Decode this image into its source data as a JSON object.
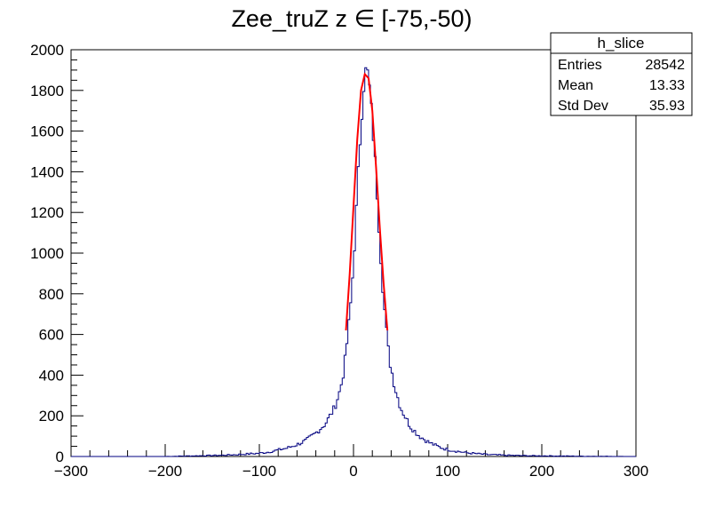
{
  "chart_data": {
    "type": "histogram",
    "title": "Zee_truZ z  ∈ [-75,-50)",
    "xlabel": "",
    "ylabel": "",
    "xlim": [
      -300,
      300
    ],
    "ylim": [
      0,
      2000
    ],
    "x_ticks": [
      -300,
      -200,
      -100,
      0,
      100,
      200,
      300
    ],
    "y_ticks": [
      0,
      200,
      400,
      600,
      800,
      1000,
      1200,
      1400,
      1600,
      1800,
      2000
    ],
    "grid": false,
    "colors": {
      "histogram": "#000080",
      "fit": "#ff0000"
    },
    "series": [
      {
        "kind": "histogram",
        "bin_width": 2,
        "bins": [
          {
            "x": -300,
            "y": 0
          },
          {
            "x": -200,
            "y": 0
          },
          {
            "x": -180,
            "y": 2
          },
          {
            "x": -160,
            "y": 4
          },
          {
            "x": -140,
            "y": 6
          },
          {
            "x": -120,
            "y": 10
          },
          {
            "x": -100,
            "y": 16
          },
          {
            "x": -90,
            "y": 22
          },
          {
            "x": -80,
            "y": 32
          },
          {
            "x": -70,
            "y": 42
          },
          {
            "x": -60,
            "y": 58
          },
          {
            "x": -50,
            "y": 80
          },
          {
            "x": -40,
            "y": 115
          },
          {
            "x": -30,
            "y": 160
          },
          {
            "x": -20,
            "y": 240
          },
          {
            "x": -14,
            "y": 330
          },
          {
            "x": -10,
            "y": 430
          },
          {
            "x": -6,
            "y": 600
          },
          {
            "x": -2,
            "y": 800
          },
          {
            "x": 2,
            "y": 1120
          },
          {
            "x": 6,
            "y": 1480
          },
          {
            "x": 10,
            "y": 1780
          },
          {
            "x": 12,
            "y": 1880
          },
          {
            "x": 14,
            "y": 1900
          },
          {
            "x": 16,
            "y": 1860
          },
          {
            "x": 18,
            "y": 1760
          },
          {
            "x": 22,
            "y": 1520
          },
          {
            "x": 26,
            "y": 1220
          },
          {
            "x": 30,
            "y": 900
          },
          {
            "x": 34,
            "y": 660
          },
          {
            "x": 38,
            "y": 480
          },
          {
            "x": 44,
            "y": 340
          },
          {
            "x": 50,
            "y": 240
          },
          {
            "x": 60,
            "y": 150
          },
          {
            "x": 70,
            "y": 100
          },
          {
            "x": 80,
            "y": 70
          },
          {
            "x": 90,
            "y": 48
          },
          {
            "x": 100,
            "y": 34
          },
          {
            "x": 120,
            "y": 18
          },
          {
            "x": 140,
            "y": 10
          },
          {
            "x": 160,
            "y": 6
          },
          {
            "x": 180,
            "y": 4
          },
          {
            "x": 200,
            "y": 3
          },
          {
            "x": 250,
            "y": 1
          },
          {
            "x": 300,
            "y": 0
          }
        ]
      },
      {
        "kind": "fit",
        "points": [
          {
            "x": -8,
            "y": 620
          },
          {
            "x": -4,
            "y": 900
          },
          {
            "x": 0,
            "y": 1230
          },
          {
            "x": 4,
            "y": 1560
          },
          {
            "x": 8,
            "y": 1800
          },
          {
            "x": 12,
            "y": 1880
          },
          {
            "x": 16,
            "y": 1860
          },
          {
            "x": 20,
            "y": 1700
          },
          {
            "x": 24,
            "y": 1420
          },
          {
            "x": 28,
            "y": 1120
          },
          {
            "x": 32,
            "y": 850
          },
          {
            "x": 36,
            "y": 620
          }
        ]
      }
    ],
    "stats_box": {
      "title": "h_slice",
      "rows": [
        {
          "label": "Entries",
          "value": "28542"
        },
        {
          "label": "Mean",
          "value": "13.33"
        },
        {
          "label": "Std Dev",
          "value": "35.93"
        }
      ]
    }
  }
}
